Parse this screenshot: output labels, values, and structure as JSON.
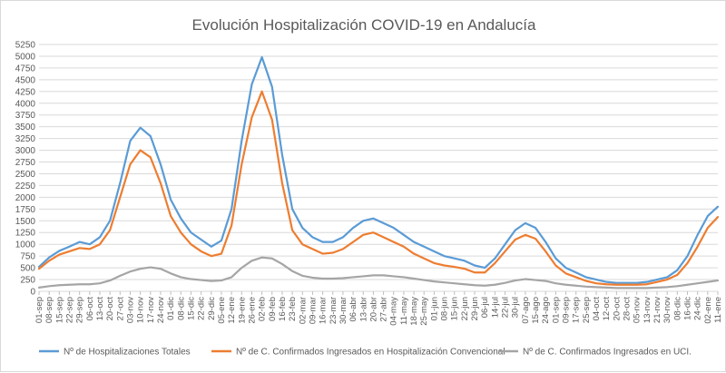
{
  "chart_data": {
    "type": "line",
    "title": "Evolución Hospitalización COVID-19 en Andalucía",
    "xlabel": "",
    "ylabel": "",
    "ylim": [
      0,
      5250
    ],
    "yticks": [
      0,
      250,
      500,
      750,
      1000,
      1250,
      1500,
      1750,
      2000,
      2250,
      2500,
      2750,
      3000,
      3250,
      3500,
      3750,
      4000,
      4250,
      4500,
      4750,
      5000,
      5250
    ],
    "grid": true,
    "legend_position": "bottom",
    "categories": [
      "01-sep",
      "08-sep",
      "15-sep",
      "22-sep",
      "29-sep",
      "06-oct",
      "13-oct",
      "20-oct",
      "27-oct",
      "03-nov",
      "10-nov",
      "17-nov",
      "24-nov",
      "01-dic",
      "08-dic",
      "15-dic",
      "22-dic",
      "29-dic",
      "05-ene",
      "12-ene",
      "19-ene",
      "26-ene",
      "02-feb",
      "09-feb",
      "16-feb",
      "23-feb",
      "02-mar",
      "09-mar",
      "16-mar",
      "23-mar",
      "30-mar",
      "06-abr",
      "13-abr",
      "20-abr",
      "27-abr",
      "04-may",
      "11-may",
      "18-may",
      "25-may",
      "01-jun",
      "08-jun",
      "15-jun",
      "22-jun",
      "29-jun",
      "06-jul",
      "14-jul",
      "22-jul",
      "30-jul",
      "07-ago",
      "15-ago",
      "24-ago",
      "01-sep",
      "09-sep",
      "17-sep",
      "25-sep",
      "04-oct",
      "12-oct",
      "20-oct",
      "28-oct",
      "05-nov",
      "13-nov",
      "21-nov",
      "30-nov",
      "08-dic",
      "16-dic",
      "24-dic",
      "02-ene",
      "11-ene"
    ],
    "series": [
      {
        "name": "Nº de Hospitalizaciones Totales",
        "color": "#5b9bd5",
        "values": [
          520,
          720,
          860,
          950,
          1050,
          1000,
          1150,
          1500,
          2300,
          3200,
          3480,
          3300,
          2700,
          1950,
          1550,
          1250,
          1100,
          950,
          1080,
          1750,
          3200,
          4400,
          4980,
          4350,
          2900,
          1750,
          1350,
          1150,
          1050,
          1050,
          1150,
          1350,
          1500,
          1550,
          1450,
          1350,
          1200,
          1050,
          950,
          850,
          750,
          700,
          650,
          550,
          500,
          700,
          1000,
          1300,
          1450,
          1350,
          1050,
          700,
          500,
          400,
          300,
          250,
          200,
          180,
          180,
          180,
          200,
          250,
          300,
          450,
          750,
          1200,
          1600,
          1800
        ]
      },
      {
        "name": "Nº de C. Confirmados Ingresados en Hospitalización Convencional",
        "color": "#ed7d31",
        "values": [
          480,
          650,
          780,
          850,
          920,
          900,
          1000,
          1300,
          2000,
          2700,
          3000,
          2850,
          2300,
          1600,
          1250,
          1000,
          850,
          750,
          800,
          1400,
          2700,
          3700,
          4250,
          3650,
          2300,
          1300,
          1000,
          900,
          800,
          820,
          900,
          1050,
          1200,
          1250,
          1150,
          1050,
          950,
          800,
          700,
          600,
          550,
          520,
          480,
          400,
          400,
          600,
          850,
          1100,
          1200,
          1120,
          850,
          550,
          380,
          300,
          220,
          170,
          150,
          140,
          140,
          140,
          150,
          200,
          250,
          350,
          600,
          950,
          1350,
          1580
        ]
      },
      {
        "name": "Nº de C. Confirmados Ingresados en UCI.",
        "color": "#a5a5a5",
        "values": [
          80,
          110,
          130,
          140,
          150,
          150,
          170,
          230,
          330,
          420,
          480,
          510,
          480,
          380,
          300,
          260,
          240,
          220,
          230,
          300,
          500,
          650,
          720,
          700,
          580,
          430,
          330,
          290,
          270,
          270,
          280,
          300,
          320,
          340,
          340,
          320,
          300,
          270,
          240,
          210,
          190,
          170,
          150,
          130,
          120,
          140,
          180,
          230,
          260,
          240,
          220,
          170,
          140,
          120,
          100,
          90,
          80,
          70,
          70,
          70,
          70,
          80,
          90,
          110,
          140,
          170,
          200,
          230
        ]
      }
    ]
  }
}
